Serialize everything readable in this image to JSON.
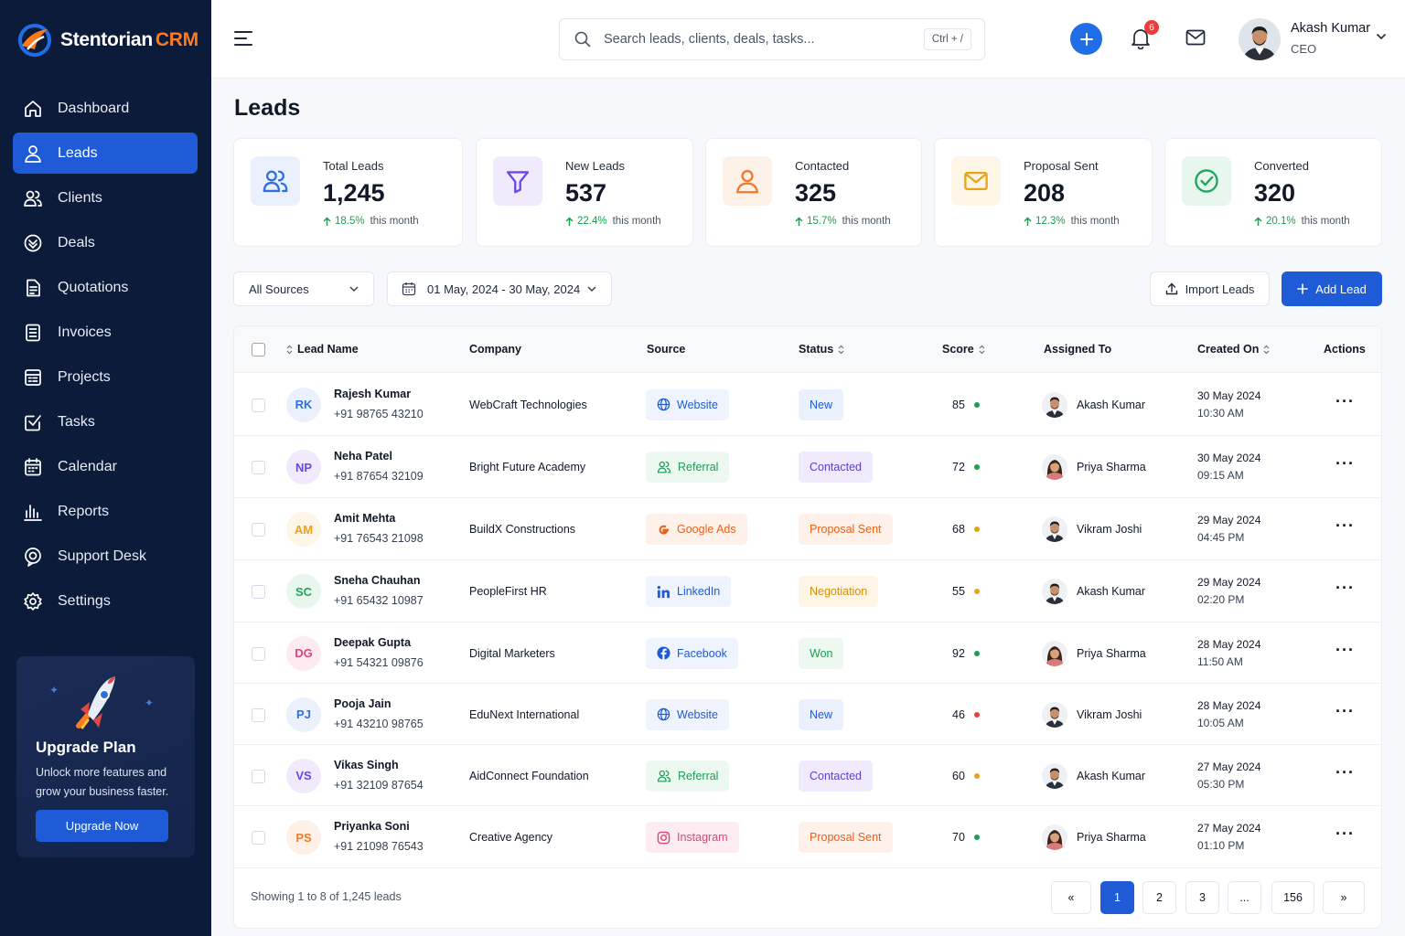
{
  "brand": {
    "name": "Stentorian",
    "suffix": "CRM"
  },
  "sidebar": {
    "items": [
      {
        "label": "Dashboard",
        "icon": "home-icon"
      },
      {
        "label": "Leads",
        "icon": "user-icon",
        "active": true
      },
      {
        "label": "Clients",
        "icon": "users-icon"
      },
      {
        "label": "Deals",
        "icon": "deals-icon"
      },
      {
        "label": "Quotations",
        "icon": "document-icon"
      },
      {
        "label": "Invoices",
        "icon": "invoice-icon"
      },
      {
        "label": "Projects",
        "icon": "projects-icon"
      },
      {
        "label": "Tasks",
        "icon": "tasks-icon"
      },
      {
        "label": "Calendar",
        "icon": "calendar-icon"
      },
      {
        "label": "Reports",
        "icon": "reports-icon"
      },
      {
        "label": "Support Desk",
        "icon": "support-icon"
      },
      {
        "label": "Settings",
        "icon": "gear-icon"
      }
    ]
  },
  "upgrade": {
    "title": "Upgrade Plan",
    "text": "Unlock more features and grow your business faster.",
    "button": "Upgrade Now"
  },
  "header": {
    "search_placeholder": "Search leads, clients, deals, tasks...",
    "shortcut": "Ctrl + /",
    "notifications": "6",
    "user_name": "Akash Kumar",
    "user_role": "CEO"
  },
  "page": {
    "title": "Leads"
  },
  "stats": [
    {
      "label": "Total Leads",
      "value": "1,245",
      "delta": "18.5%",
      "suffix": "this month",
      "icon": "users-icon",
      "color": "#2f6fe4",
      "bg": "#eaf1fd"
    },
    {
      "label": "New Leads",
      "value": "537",
      "delta": "22.4%",
      "suffix": "this month",
      "icon": "filter-icon",
      "color": "#6b46e5",
      "bg": "#efebfd"
    },
    {
      "label": "Contacted",
      "value": "325",
      "delta": "15.7%",
      "suffix": "this month",
      "icon": "user-icon",
      "color": "#f07a2a",
      "bg": "#fdf0e7"
    },
    {
      "label": "Proposal Sent",
      "value": "208",
      "delta": "12.3%",
      "suffix": "this month",
      "icon": "mail-icon",
      "color": "#e9a21a",
      "bg": "#fdf6e6"
    },
    {
      "label": "Converted",
      "value": "320",
      "delta": "20.1%",
      "suffix": "this month",
      "icon": "check-circle-icon",
      "color": "#1fa65a",
      "bg": "#e8f7ee"
    }
  ],
  "filters": {
    "source": "All Sources",
    "date_range": "01 May, 2024 - 30 May, 2024",
    "import": "Import Leads",
    "add": "Add Lead"
  },
  "table": {
    "columns": [
      "Lead Name",
      "Company",
      "Source",
      "Status",
      "Score",
      "Assigned To",
      "Created On",
      "Actions"
    ],
    "rows": [
      {
        "initials": "RK",
        "name": "Rajesh Kumar",
        "phone": "+91 98765 43210",
        "company": "WebCraft Technologies",
        "source": "Website",
        "status": "New",
        "score": "85",
        "score_color": "#16a34a",
        "assigned": "Akash Kumar",
        "gender": "m",
        "date": "30 May 2024",
        "time": "10:30 AM",
        "ini_color": "#2f6fe4",
        "ini_bg": "#eaf1fd"
      },
      {
        "initials": "NP",
        "name": "Neha Patel",
        "phone": "+91 87654 32109",
        "company": "Bright Future Academy",
        "source": "Referral",
        "status": "Contacted",
        "score": "72",
        "score_color": "#16a34a",
        "assigned": "Priya Sharma",
        "gender": "f",
        "date": "30 May 2024",
        "time": "09:15 AM",
        "ini_color": "#6b46e5",
        "ini_bg": "#efebfd"
      },
      {
        "initials": "AM",
        "name": "Amit Mehta",
        "phone": "+91 76543 21098",
        "company": "BuildX Constructions",
        "source": "Google Ads",
        "status": "Proposal Sent",
        "score": "68",
        "score_color": "#e9a21a",
        "assigned": "Vikram Joshi",
        "gender": "m",
        "date": "29 May 2024",
        "time": "04:45 PM",
        "ini_color": "#e9a21a",
        "ini_bg": "#fdf6e6"
      },
      {
        "initials": "SC",
        "name": "Sneha Chauhan",
        "phone": "+91 65432 10987",
        "company": "PeopleFirst HR",
        "source": "LinkedIn",
        "status": "Negotiation",
        "score": "55",
        "score_color": "#e9a21a",
        "assigned": "Akash Kumar",
        "gender": "m",
        "date": "29 May 2024",
        "time": "02:20 PM",
        "ini_color": "#1fa65a",
        "ini_bg": "#e8f7ee"
      },
      {
        "initials": "DG",
        "name": "Deepak Gupta",
        "phone": "+91 54321 09876",
        "company": "Digital Marketers",
        "source": "Facebook",
        "status": "Won",
        "score": "92",
        "score_color": "#16a34a",
        "assigned": "Priya Sharma",
        "gender": "f",
        "date": "28 May 2024",
        "time": "11:50 AM",
        "ini_color": "#e0457b",
        "ini_bg": "#fdebf1"
      },
      {
        "initials": "PJ",
        "name": "Pooja Jain",
        "phone": "+91 43210 98765",
        "company": "EduNext International",
        "source": "Website",
        "status": "New",
        "score": "46",
        "score_color": "#ef3b3b",
        "assigned": "Vikram Joshi",
        "gender": "m",
        "date": "28 May 2024",
        "time": "10:05 AM",
        "ini_color": "#2f6fe4",
        "ini_bg": "#eaf1fd"
      },
      {
        "initials": "VS",
        "name": "Vikas Singh",
        "phone": "+91 32109 87654",
        "company": "AidConnect Foundation",
        "source": "Referral",
        "status": "Contacted",
        "score": "60",
        "score_color": "#e9a21a",
        "assigned": "Akash Kumar",
        "gender": "m",
        "date": "27 May 2024",
        "time": "05:30 PM",
        "ini_color": "#6b46e5",
        "ini_bg": "#efebfd"
      },
      {
        "initials": "PS",
        "name": "Priyanka Soni",
        "phone": "+91 21098 76543",
        "company": "Creative Agency",
        "source": "Instagram",
        "status": "Proposal Sent",
        "score": "70",
        "score_color": "#16a34a",
        "assigned": "Priya Sharma",
        "gender": "f",
        "date": "27 May 2024",
        "time": "01:10 PM",
        "ini_color": "#f07a2a",
        "ini_bg": "#fdf0e7"
      }
    ]
  },
  "pagination": {
    "showing": "Showing 1 to 8 of 1,245 leads",
    "prev": "«",
    "pages": [
      "1",
      "2",
      "3",
      "...",
      "156"
    ],
    "next": "»",
    "active": "1"
  }
}
